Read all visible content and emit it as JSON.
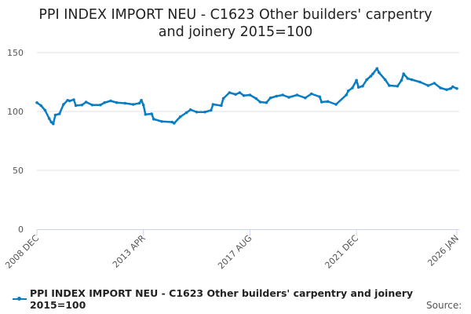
{
  "chart_data": {
    "type": "line",
    "title": "PPI INDEX IMPORT NEU - C1623 Other builders' carpentry and joinery 2015=100",
    "title_lines": [
      "PPI INDEX IMPORT NEU - C1623 Other builders' carpentry",
      "and joinery 2015=100"
    ],
    "xlabel": "",
    "ylabel": "",
    "ylim": [
      0,
      150
    ],
    "yticks": [
      0,
      50,
      100,
      150
    ],
    "x_unit": "months since 2008 DEC",
    "xlim": [
      0,
      205
    ],
    "xticks": [
      {
        "x": 0,
        "label": "2008 DEC"
      },
      {
        "x": 52,
        "label": "2013 APR"
      },
      {
        "x": 104,
        "label": "2017 AUG"
      },
      {
        "x": 156,
        "label": "2021 DEC"
      },
      {
        "x": 205,
        "label": "2026 JAN"
      }
    ],
    "grid": true,
    "legend_position": "bottom",
    "color": "#0a7cc1",
    "series": [
      {
        "name": "PPI INDEX IMPORT NEU - C1623 Other builders' carpentry and joinery 2015=100",
        "points": [
          [
            0,
            107.5
          ],
          [
            2,
            105
          ],
          [
            4,
            101
          ],
          [
            6,
            94
          ],
          [
            7,
            91
          ],
          [
            8,
            89.5
          ],
          [
            9,
            97
          ],
          [
            11,
            98
          ],
          [
            13,
            106
          ],
          [
            15,
            109.5
          ],
          [
            16,
            109
          ],
          [
            18,
            110
          ],
          [
            19,
            105
          ],
          [
            22,
            105.5
          ],
          [
            24,
            108
          ],
          [
            27,
            105.5
          ],
          [
            31,
            105.5
          ],
          [
            33,
            107.5
          ],
          [
            36,
            109
          ],
          [
            39,
            107.5
          ],
          [
            43,
            107
          ],
          [
            47,
            106
          ],
          [
            50,
            107
          ],
          [
            51,
            109.5
          ],
          [
            52,
            105.5
          ],
          [
            53,
            97.5
          ],
          [
            56,
            98
          ],
          [
            57,
            93.5
          ],
          [
            61,
            91.5
          ],
          [
            66,
            91
          ],
          [
            67,
            90
          ],
          [
            70,
            95.5
          ],
          [
            73,
            99
          ],
          [
            75,
            101.5
          ],
          [
            78,
            99.5
          ],
          [
            82,
            99.5
          ],
          [
            85,
            101
          ],
          [
            86,
            106
          ],
          [
            90,
            105
          ],
          [
            91,
            111
          ],
          [
            94,
            116
          ],
          [
            97,
            114.5
          ],
          [
            99,
            116
          ],
          [
            101,
            113.5
          ],
          [
            104,
            114
          ],
          [
            107,
            111
          ],
          [
            109,
            108
          ],
          [
            112,
            107.5
          ],
          [
            114,
            111.5
          ],
          [
            117,
            113
          ],
          [
            120,
            114
          ],
          [
            123,
            112
          ],
          [
            127,
            114
          ],
          [
            131,
            111.5
          ],
          [
            134,
            115
          ],
          [
            138,
            112.5
          ],
          [
            139,
            108
          ],
          [
            142,
            108.5
          ],
          [
            146,
            106
          ],
          [
            151,
            114
          ],
          [
            152,
            117.5
          ],
          [
            154,
            120
          ],
          [
            156,
            126.5
          ],
          [
            157,
            120.5
          ],
          [
            159,
            121.5
          ],
          [
            161,
            127
          ],
          [
            163,
            130
          ],
          [
            164,
            132
          ],
          [
            166,
            136.5
          ],
          [
            167,
            133
          ],
          [
            170,
            127
          ],
          [
            172,
            122
          ],
          [
            176,
            121.5
          ],
          [
            178,
            126.5
          ],
          [
            179,
            132
          ],
          [
            181,
            128
          ],
          [
            183,
            127
          ],
          [
            187,
            125
          ],
          [
            191,
            122
          ],
          [
            194,
            124
          ],
          [
            197,
            120
          ],
          [
            200,
            118.5
          ],
          [
            202,
            119.5
          ],
          [
            203,
            121
          ],
          [
            205,
            119.5
          ]
        ]
      }
    ]
  },
  "source_label": "Source:"
}
